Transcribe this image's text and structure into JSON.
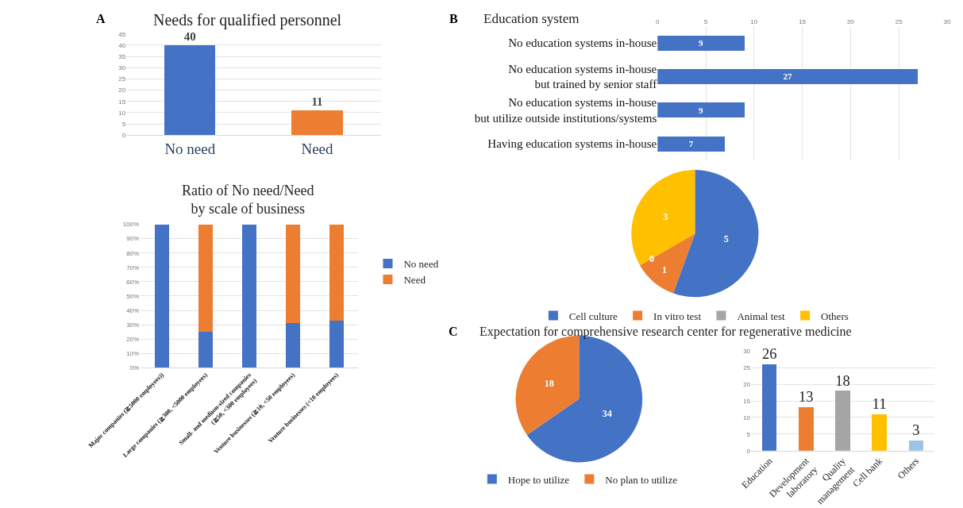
{
  "chart_data": [
    {
      "type": "bar",
      "title": "Needs for qualified personnel",
      "annotations": [
        "A"
      ],
      "categories": [
        "No need",
        "Need"
      ],
      "values": [
        40,
        11
      ],
      "colors": [
        "#4472c4",
        "#ed7d31"
      ],
      "ylim": [
        0,
        45
      ],
      "yticks": [
        0,
        5,
        10,
        15,
        20,
        25,
        30,
        35,
        40,
        45
      ],
      "grid": "y",
      "data_labels": true
    },
    {
      "type": "bar",
      "title": "Ratio of No need/Need\nby scale of business",
      "stacked": true,
      "categories": [
        "Major companies (≧5000 employees))",
        "Large companies (≧300, <5000 employees)",
        "Small- and medium-sized companies\n(≧50, <300 employees)",
        "Venture businesses (≧10, <50 employees)",
        "Venture businesses (<10 employees)"
      ],
      "series": [
        {
          "name": "No need",
          "color": "#4472c4",
          "values": [
            100,
            25,
            100,
            31,
            33
          ]
        },
        {
          "name": "Need",
          "color": "#ed7d31",
          "values": [
            0,
            75,
            0,
            69,
            67
          ]
        }
      ],
      "ylim": [
        0,
        100
      ],
      "yticks": [
        {
          "value": 0,
          "label": "0%"
        },
        {
          "value": 10,
          "label": "10%"
        },
        {
          "value": 20,
          "label": "20%"
        },
        {
          "value": 30,
          "label": "30%"
        },
        {
          "value": 40,
          "label": "40%"
        },
        {
          "value": 50,
          "label": "50%"
        },
        {
          "value": 60,
          "label": "60%"
        },
        {
          "value": 70,
          "label": "70%"
        },
        {
          "value": 80,
          "label": "80%"
        },
        {
          "value": 90,
          "label": "90%"
        },
        {
          "value": 100,
          "label": "100%"
        }
      ],
      "grid": "y",
      "legend": "right"
    },
    {
      "type": "bar",
      "orientation": "horizontal",
      "title": "Education system",
      "annotations": [
        "B"
      ],
      "categories": [
        "No education systems in-house",
        "No education systems in-house\nbut trained by senior staff",
        "No education systems in-house\nbut utilize outside institutions/systems",
        "Having education systems in-house"
      ],
      "values": [
        9,
        27,
        9,
        7
      ],
      "color": "#4472c4",
      "xlim": [
        0,
        30
      ],
      "xticks": [
        0,
        5,
        10,
        15,
        20,
        25,
        30
      ],
      "grid": "x",
      "data_labels": true
    },
    {
      "type": "pie",
      "categories": [
        "Cell culture",
        "In vitro test",
        "Animal test",
        "Others"
      ],
      "values": [
        5,
        1,
        0,
        3
      ],
      "value_labels": [
        "5",
        "1",
        "0",
        "3"
      ],
      "colors": [
        "#4472c4",
        "#ed7d31",
        "#a5a5a5",
        "#ffc000"
      ],
      "legend": "bottom"
    },
    {
      "type": "pie",
      "title": "Expectation for comprehensive research center for regenerative medicine",
      "annotations": [
        "C"
      ],
      "categories": [
        "Hope to utilize",
        "No plan to utilize"
      ],
      "values": [
        34,
        18
      ],
      "colors": [
        "#4472c4",
        "#ed7d31"
      ],
      "data_labels": true,
      "legend": "bottom"
    },
    {
      "type": "bar",
      "categories": [
        "Education",
        "Development\nlaboratory",
        "Quality\nmanagement",
        "Cell bank",
        "Others"
      ],
      "values": [
        26,
        13,
        18,
        11,
        3
      ],
      "colors": [
        "#4472c4",
        "#ed7d31",
        "#a5a5a5",
        "#ffc000",
        "#9dc3e6"
      ],
      "ylim": [
        0,
        30
      ],
      "yticks": [
        0,
        5,
        10,
        15,
        20,
        25,
        30
      ],
      "grid": "y",
      "data_labels": true
    }
  ]
}
